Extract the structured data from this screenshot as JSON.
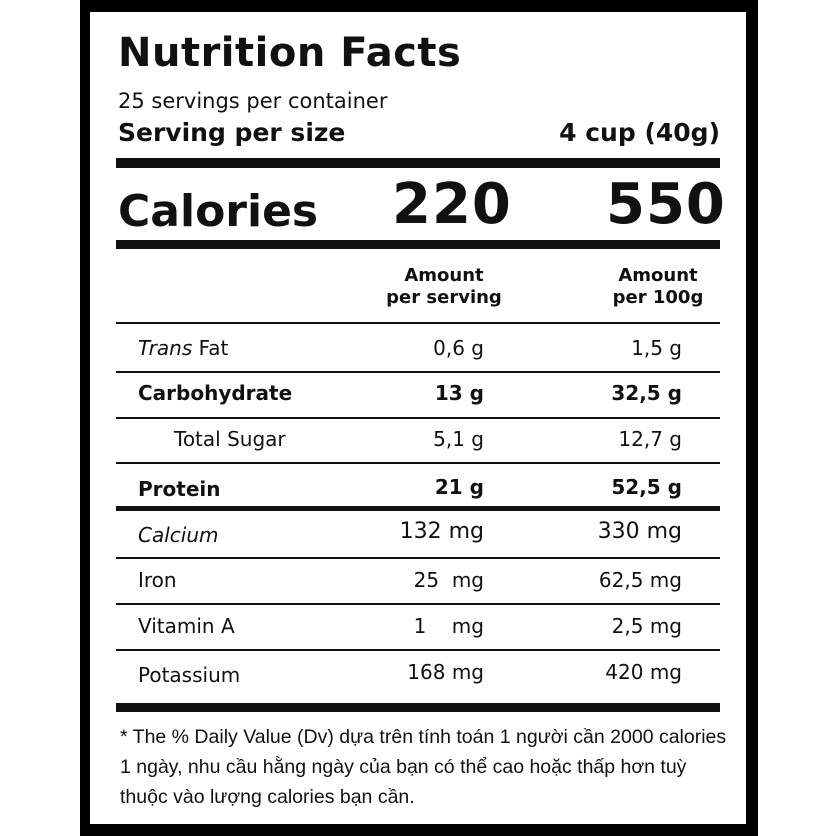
{
  "label": {
    "title": "Nutrition Facts",
    "servings_per_container": "25 servings per container",
    "serving_size_label": "Serving per size",
    "serving_size_value": "4 cup (40g)",
    "calories_label": "Calories",
    "calories_per_serving": "220",
    "calories_per_100g": "550",
    "col1_line1": "Amount",
    "col1_line2": "per serving",
    "col2_line1": "Amount",
    "col2_line2": "per 100g",
    "rows": [
      {
        "label_italic": "Trans",
        "label": " Fat",
        "per_serving": "0,6 g",
        "per_100g": "1,5 g",
        "bold": false
      },
      {
        "label_italic": "",
        "label": "Carbohydrate",
        "per_serving": "13 g",
        "per_100g": "32,5 g",
        "bold": true
      },
      {
        "label_italic": "",
        "label": "Total Sugar",
        "per_serving": "5,1 g",
        "per_100g": "12,7 g",
        "bold": false
      },
      {
        "label_italic": "",
        "label": "Protein",
        "per_serving": "21 g",
        "per_100g": "52,5 g",
        "bold": true
      },
      {
        "label_italic": "Calcium",
        "label": "",
        "per_serving": "132 mg",
        "per_100g": "330 mg",
        "bold": false
      },
      {
        "label_italic": "",
        "label": "Iron",
        "per_serving": "25  mg",
        "per_100g": "62,5 mg",
        "bold": false
      },
      {
        "label_italic": "",
        "label": "Vitamin A",
        "per_serving": "1    mg",
        "per_100g": "2,5 mg",
        "bold": false
      },
      {
        "label_italic": "",
        "label": "Potassium",
        "per_serving": "168 mg",
        "per_100g": "420 mg",
        "bold": false
      }
    ],
    "footnote": "* The % Daily Value (Dv) dựa trên tính toán 1 người cần 2000 calories 1 ngày, nhu cầu hằng ngày của bạn có thể cao hoặc thấp hơn tuỳ thuộc vào lượng calories bạn cần."
  }
}
